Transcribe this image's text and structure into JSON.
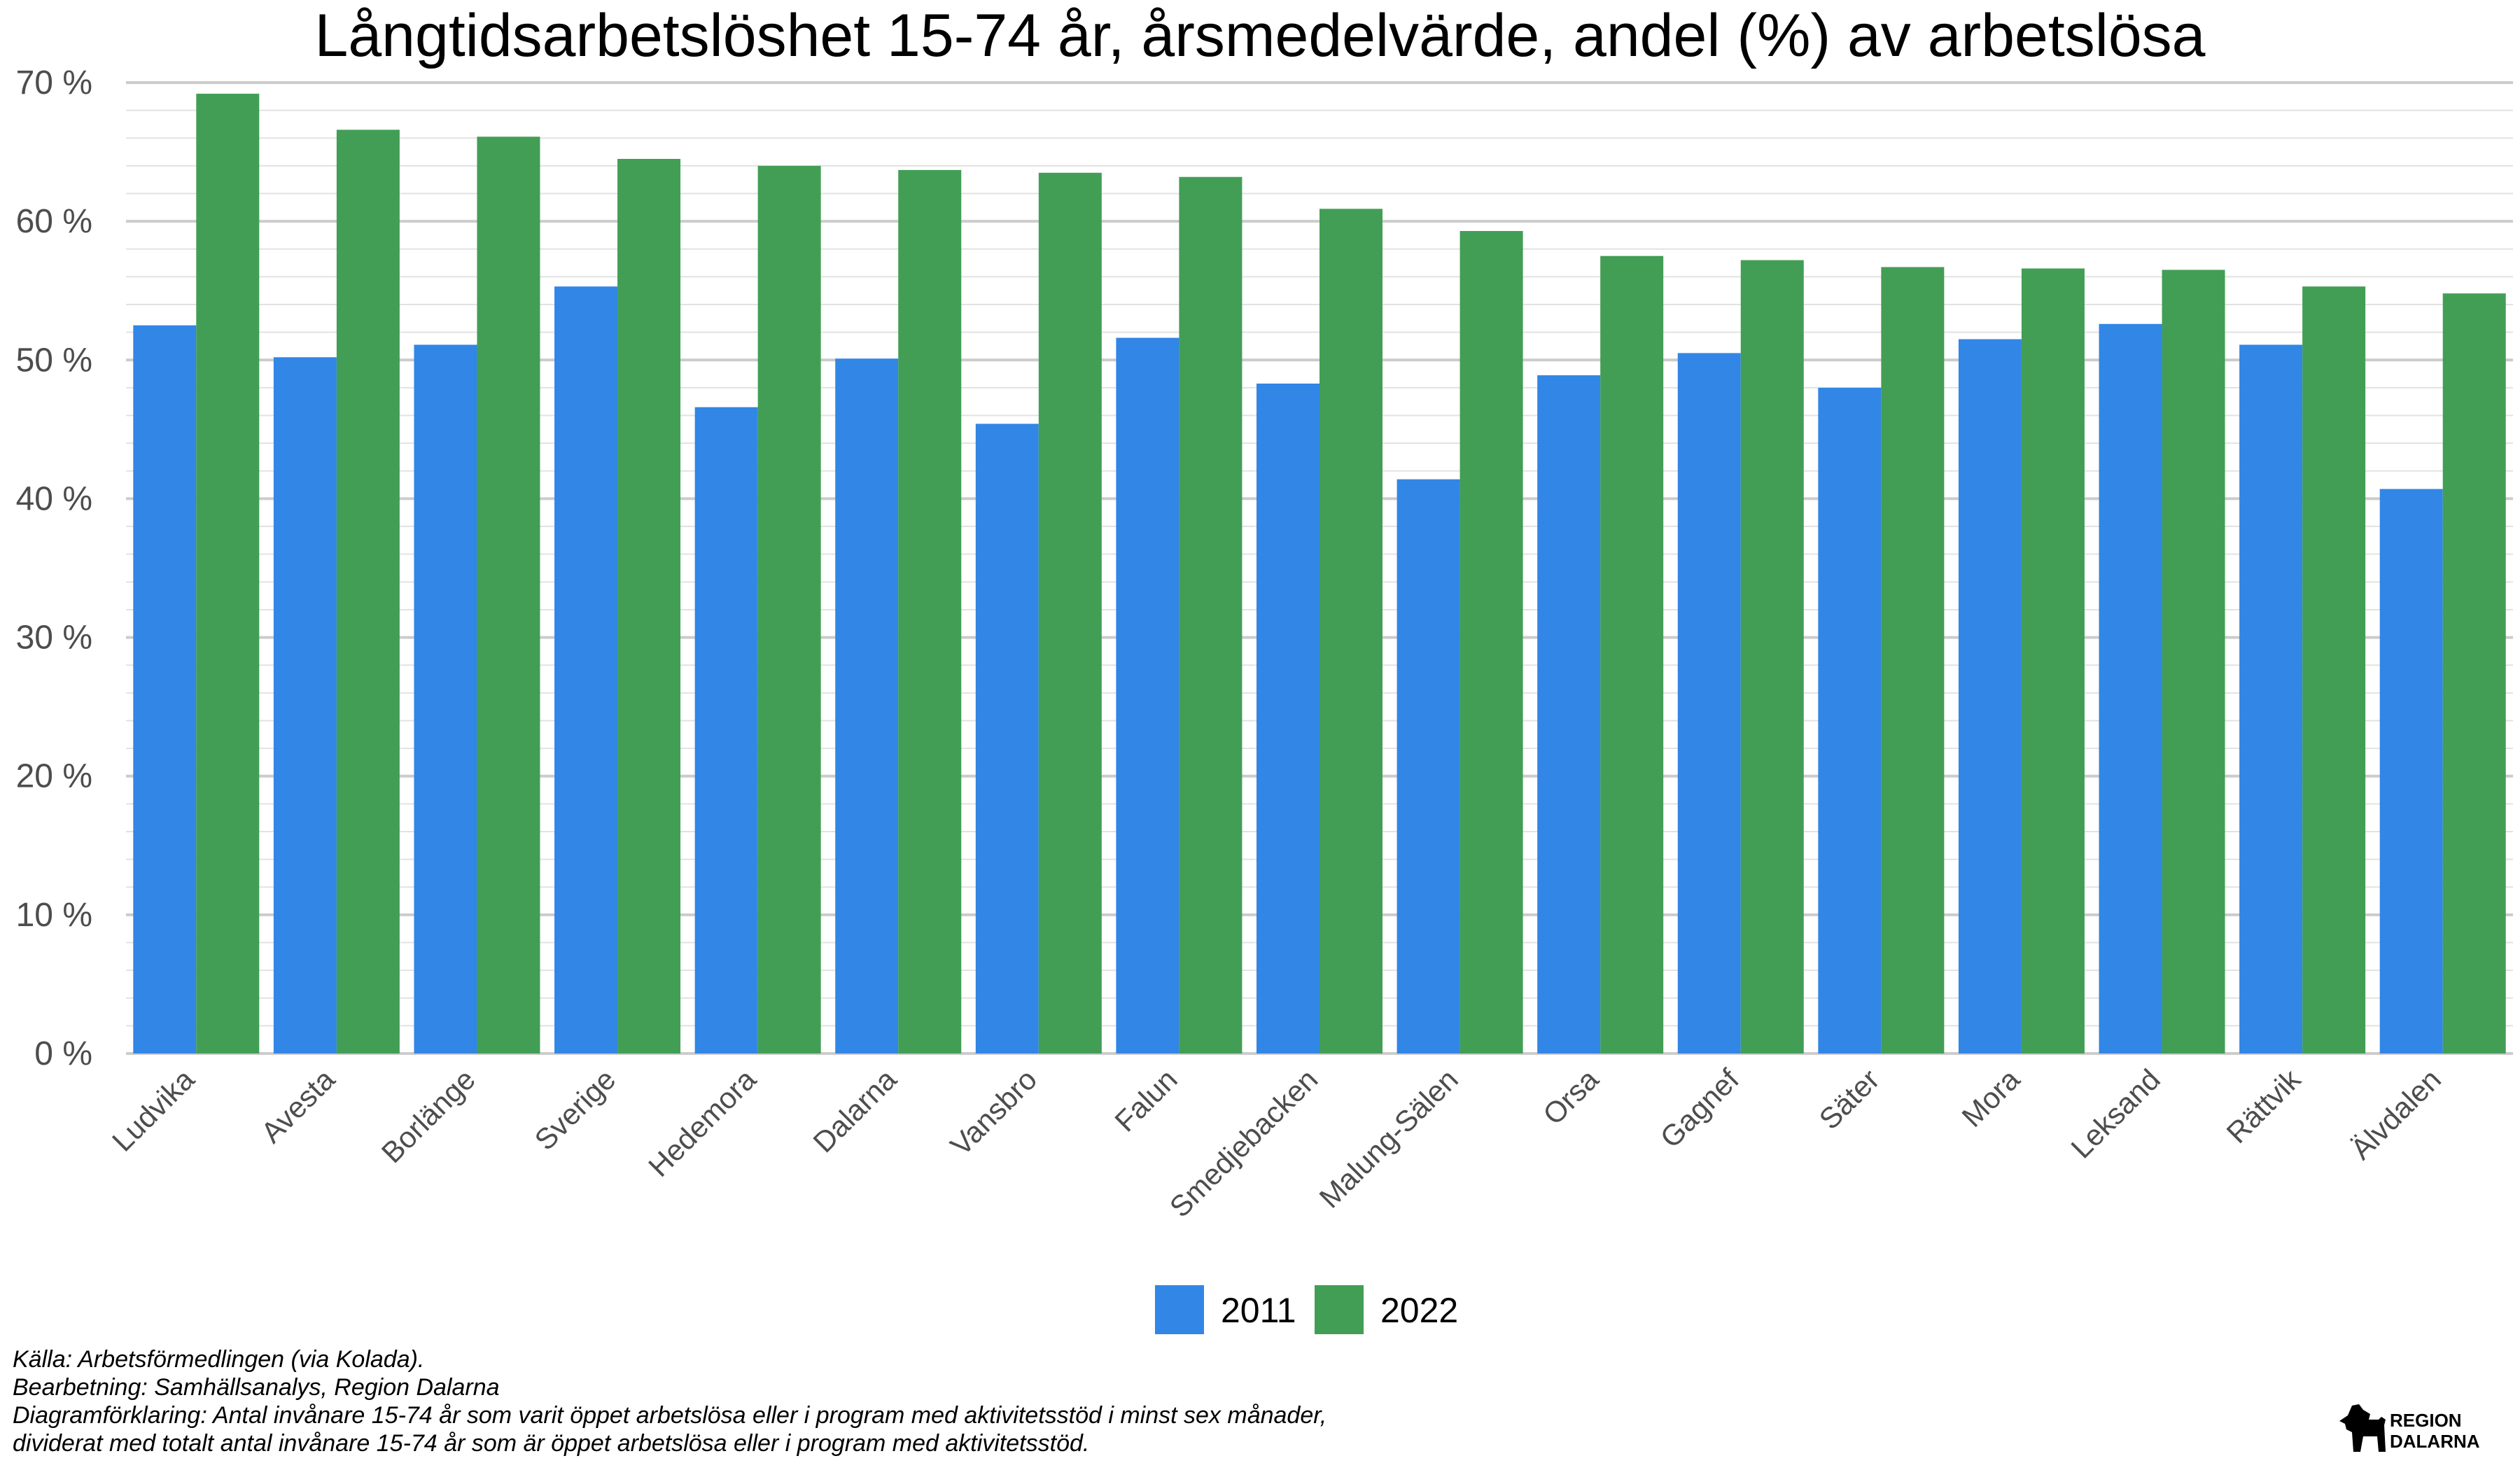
{
  "chart_data": {
    "type": "bar",
    "title": "Långtidsarbetslöshet 15-74 år, årsmedelvärde, andel (%) av arbetslösa",
    "xlabel": "",
    "ylabel": "",
    "ylim": [
      0,
      70
    ],
    "yticks": [
      "0 %",
      "10 %",
      "20 %",
      "30 %",
      "40 %",
      "50 %",
      "60 %",
      "70 %"
    ],
    "grid": true,
    "legend_position": "bottom",
    "categories": [
      "Ludvika",
      "Avesta",
      "Borlänge",
      "Sverige",
      "Hedemora",
      "Dalarna",
      "Vansbro",
      "Falun",
      "Smedjebacken",
      "Malung-Sälen",
      "Orsa",
      "Gagnef",
      "Säter",
      "Mora",
      "Leksand",
      "Rättvik",
      "Älvdalen"
    ],
    "series": [
      {
        "name": "2011",
        "color": "#3186e6",
        "values": [
          52.5,
          50.2,
          51.1,
          55.3,
          46.6,
          50.1,
          45.4,
          51.6,
          48.3,
          41.4,
          48.9,
          50.5,
          48.0,
          51.5,
          52.6,
          51.1,
          40.7
        ]
      },
      {
        "name": "2022",
        "color": "#429e55",
        "values": [
          69.2,
          66.6,
          66.1,
          64.5,
          64.0,
          63.7,
          63.5,
          63.2,
          60.9,
          59.3,
          57.5,
          57.2,
          56.7,
          56.6,
          56.5,
          55.3,
          54.8
        ]
      }
    ]
  },
  "captions": [
    "Källa: Arbetsförmedlingen (via Kolada).",
    "Bearbetning: Samhällsanalys, Region Dalarna",
    "Diagramförklaring: Antal invånare 15-74 år som varit öppet arbetslösa eller i program med aktivitetsstöd i minst sex månader,",
    "dividerat med totalt antal invånare 15-74 år som är öppet arbetslösa eller i program med aktivitetsstöd."
  ],
  "logo": {
    "line1": "REGION",
    "line2": "DALARNA"
  }
}
